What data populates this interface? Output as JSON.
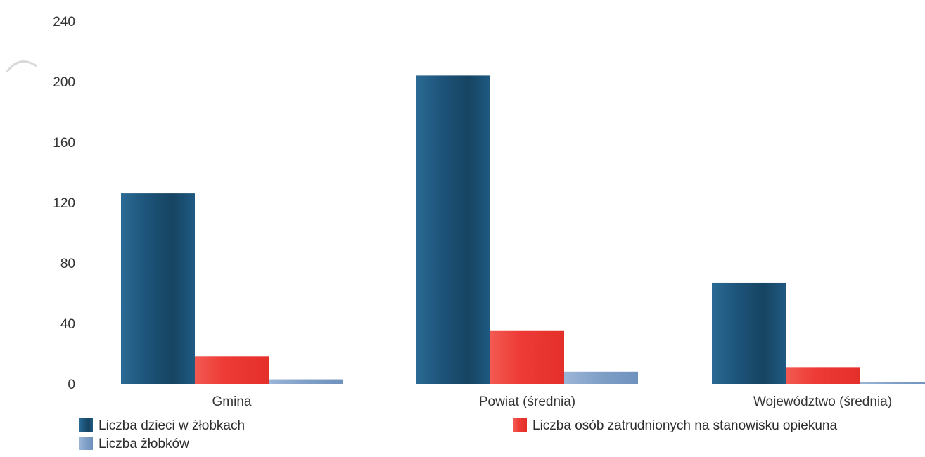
{
  "chart_data": {
    "type": "bar",
    "categories": [
      "Gmina",
      "Powiat (średnia)",
      "Województwo (średnia)"
    ],
    "series": [
      {
        "name": "Liczba dzieci w żłobkach",
        "color": "#1d5379",
        "values": [
          126,
          204,
          67
        ]
      },
      {
        "name": "Liczba osób zatrudnionych na stanowisku opiekuna",
        "color": "#ee3b36",
        "values": [
          18,
          35,
          11
        ]
      },
      {
        "name": "Liczba żłobków",
        "color": "#7f9fc7",
        "values": [
          3,
          8,
          1
        ]
      }
    ],
    "yticks": [
      "0",
      "40",
      "80",
      "120",
      "160",
      "200",
      "240"
    ],
    "ylim": [
      0,
      240
    ],
    "grid": false,
    "legend_position": "bottom"
  }
}
